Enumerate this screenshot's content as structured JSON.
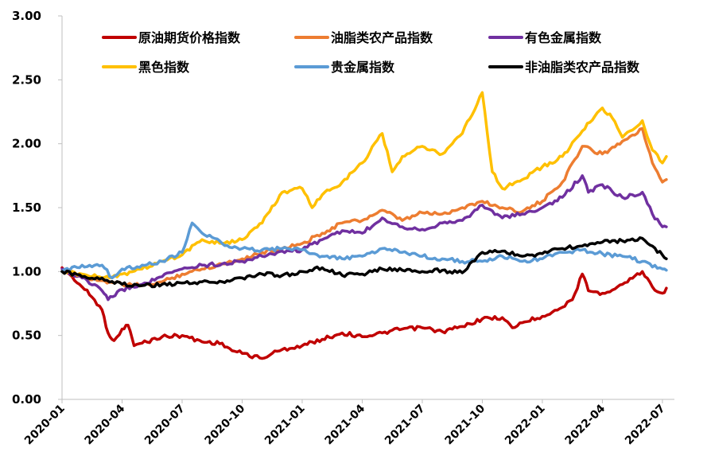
{
  "chart_data": {
    "type": "line",
    "title": "",
    "xlabel": "",
    "ylabel": "",
    "ylim": [
      0,
      3
    ],
    "y_ticks": [
      "0.00",
      "0.50",
      "1.00",
      "1.50",
      "2.00",
      "2.50",
      "3.00"
    ],
    "x_ticks": [
      "2020-01",
      "2020-04",
      "2020-07",
      "2020-10",
      "2021-01",
      "2021-04",
      "2021-07",
      "2021-10",
      "2022-01",
      "2022-04",
      "2022-07"
    ],
    "grid": false,
    "legend_position": "top",
    "series": [
      {
        "name": "原油期货价格指数",
        "color": "#C00000",
        "points": [
          [
            "2020-01",
            1.03
          ],
          [
            "2020-01.5",
            0.96
          ],
          [
            "2020-02",
            0.88
          ],
          [
            "2020-02.5",
            0.8
          ],
          [
            "2020-03",
            0.7
          ],
          [
            "2020-03.3",
            0.52
          ],
          [
            "2020-03.6",
            0.46
          ],
          [
            "2020-04",
            0.55
          ],
          [
            "2020-04.3",
            0.58
          ],
          [
            "2020-04.6",
            0.42
          ],
          [
            "2020-05",
            0.44
          ],
          [
            "2020-06",
            0.49
          ],
          [
            "2020-07",
            0.5
          ],
          [
            "2020-08",
            0.45
          ],
          [
            "2020-09",
            0.44
          ],
          [
            "2020-09.5",
            0.38
          ],
          [
            "2020-10",
            0.36
          ],
          [
            "2020-11",
            0.32
          ],
          [
            "2020-11.5",
            0.36
          ],
          [
            "2020-12",
            0.39
          ],
          [
            "2021-01",
            0.42
          ],
          [
            "2021-02",
            0.47
          ],
          [
            "2021-03",
            0.52
          ],
          [
            "2021-04",
            0.49
          ],
          [
            "2021-05",
            0.52
          ],
          [
            "2021-06",
            0.55
          ],
          [
            "2021-07",
            0.56
          ],
          [
            "2021-08",
            0.53
          ],
          [
            "2021-09",
            0.57
          ],
          [
            "2021-10",
            0.63
          ],
          [
            "2021-11",
            0.64
          ],
          [
            "2021-11.5",
            0.56
          ],
          [
            "2021-12",
            0.6
          ],
          [
            "2022-01",
            0.65
          ],
          [
            "2022-02",
            0.72
          ],
          [
            "2022-02.5",
            0.78
          ],
          [
            "2022-03",
            0.98
          ],
          [
            "2022-03.3",
            0.85
          ],
          [
            "2022-04",
            0.83
          ],
          [
            "2022-05",
            0.9
          ],
          [
            "2022-06",
            1.0
          ],
          [
            "2022-06.5",
            0.88
          ],
          [
            "2022-07",
            0.83
          ],
          [
            "2022-07.2",
            0.87
          ]
        ]
      },
      {
        "name": "油脂类农产品指数",
        "color": "#ED7D31",
        "points": [
          [
            "2020-01",
            1.0
          ],
          [
            "2020-02",
            0.96
          ],
          [
            "2020-03",
            0.93
          ],
          [
            "2020-04",
            0.9
          ],
          [
            "2020-05",
            0.89
          ],
          [
            "2020-06",
            0.92
          ],
          [
            "2020-07",
            0.98
          ],
          [
            "2020-08",
            1.02
          ],
          [
            "2020-09",
            1.06
          ],
          [
            "2020-10",
            1.1
          ],
          [
            "2020-11",
            1.15
          ],
          [
            "2020-12",
            1.18
          ],
          [
            "2021-01",
            1.22
          ],
          [
            "2021-02",
            1.3
          ],
          [
            "2021-03",
            1.38
          ],
          [
            "2021-04",
            1.4
          ],
          [
            "2021-05",
            1.48
          ],
          [
            "2021-06",
            1.4
          ],
          [
            "2021-07",
            1.46
          ],
          [
            "2021-08",
            1.45
          ],
          [
            "2021-09",
            1.5
          ],
          [
            "2021-10",
            1.55
          ],
          [
            "2021-11",
            1.5
          ],
          [
            "2021-12",
            1.47
          ],
          [
            "2022-01",
            1.55
          ],
          [
            "2022-02",
            1.7
          ],
          [
            "2022-03",
            1.98
          ],
          [
            "2022-04",
            1.92
          ],
          [
            "2022-05",
            2.02
          ],
          [
            "2022-06",
            2.12
          ],
          [
            "2022-06.5",
            1.85
          ],
          [
            "2022-07",
            1.7
          ],
          [
            "2022-07.2",
            1.72
          ]
        ]
      },
      {
        "name": "有色金属指数",
        "color": "#7030A0",
        "points": [
          [
            "2020-01",
            1.02
          ],
          [
            "2020-02",
            0.95
          ],
          [
            "2020-03",
            0.85
          ],
          [
            "2020-03.3",
            0.78
          ],
          [
            "2020-04",
            0.86
          ],
          [
            "2020-05",
            0.9
          ],
          [
            "2020-06",
            0.96
          ],
          [
            "2020-07",
            1.02
          ],
          [
            "2020-08",
            1.05
          ],
          [
            "2020-09",
            1.06
          ],
          [
            "2020-10",
            1.08
          ],
          [
            "2020-11",
            1.12
          ],
          [
            "2020-12",
            1.16
          ],
          [
            "2021-01",
            1.17
          ],
          [
            "2021-02",
            1.25
          ],
          [
            "2021-03",
            1.32
          ],
          [
            "2021-04",
            1.3
          ],
          [
            "2021-05",
            1.42
          ],
          [
            "2021-06",
            1.35
          ],
          [
            "2021-07",
            1.33
          ],
          [
            "2021-08",
            1.38
          ],
          [
            "2021-09",
            1.4
          ],
          [
            "2021-10",
            1.52
          ],
          [
            "2021-11",
            1.42
          ],
          [
            "2021-12",
            1.45
          ],
          [
            "2022-01",
            1.5
          ],
          [
            "2022-02",
            1.58
          ],
          [
            "2022-03",
            1.75
          ],
          [
            "2022-03.3",
            1.62
          ],
          [
            "2022-04",
            1.68
          ],
          [
            "2022-05",
            1.58
          ],
          [
            "2022-06",
            1.62
          ],
          [
            "2022-06.5",
            1.45
          ],
          [
            "2022-07",
            1.35
          ],
          [
            "2022-07.2",
            1.35
          ]
        ]
      },
      {
        "name": "黑色指数",
        "color": "#FFC000",
        "points": [
          [
            "2020-01",
            1.0
          ],
          [
            "2020-02",
            0.98
          ],
          [
            "2020-03",
            0.95
          ],
          [
            "2020-04",
            0.98
          ],
          [
            "2020-05",
            1.02
          ],
          [
            "2020-06",
            1.08
          ],
          [
            "2020-07",
            1.13
          ],
          [
            "2020-08",
            1.25
          ],
          [
            "2020-09",
            1.22
          ],
          [
            "2020-10",
            1.25
          ],
          [
            "2020-11",
            1.38
          ],
          [
            "2020-12",
            1.62
          ],
          [
            "2021-01",
            1.65
          ],
          [
            "2021-01.5",
            1.5
          ],
          [
            "2021-02",
            1.6
          ],
          [
            "2021-03",
            1.7
          ],
          [
            "2021-04",
            1.85
          ],
          [
            "2021-05",
            2.08
          ],
          [
            "2021-05.5",
            1.78
          ],
          [
            "2021-06",
            1.9
          ],
          [
            "2021-07",
            1.98
          ],
          [
            "2021-08",
            1.92
          ],
          [
            "2021-09",
            2.08
          ],
          [
            "2021-10",
            2.4
          ],
          [
            "2021-10.5",
            1.78
          ],
          [
            "2021-11",
            1.65
          ],
          [
            "2021-12",
            1.72
          ],
          [
            "2022-01",
            1.82
          ],
          [
            "2022-02",
            1.9
          ],
          [
            "2022-03",
            2.1
          ],
          [
            "2022-04",
            2.28
          ],
          [
            "2022-04.5",
            2.2
          ],
          [
            "2022-05",
            2.05
          ],
          [
            "2022-06",
            2.18
          ],
          [
            "2022-06.5",
            1.95
          ],
          [
            "2022-07",
            1.85
          ],
          [
            "2022-07.2",
            1.9
          ]
        ]
      },
      {
        "name": "贵金属指数",
        "color": "#5B9BD5",
        "points": [
          [
            "2020-01",
            1.0
          ],
          [
            "2020-02",
            1.05
          ],
          [
            "2020-03",
            1.05
          ],
          [
            "2020-03.5",
            0.95
          ],
          [
            "2020-04",
            1.02
          ],
          [
            "2020-05",
            1.05
          ],
          [
            "2020-06",
            1.08
          ],
          [
            "2020-07",
            1.15
          ],
          [
            "2020-07.5",
            1.38
          ],
          [
            "2020-08",
            1.3
          ],
          [
            "2020-09",
            1.22
          ],
          [
            "2020-10",
            1.18
          ],
          [
            "2020-11",
            1.17
          ],
          [
            "2020-12",
            1.18
          ],
          [
            "2021-01",
            1.17
          ],
          [
            "2021-02",
            1.12
          ],
          [
            "2021-03",
            1.1
          ],
          [
            "2021-04",
            1.12
          ],
          [
            "2021-05",
            1.18
          ],
          [
            "2021-06",
            1.15
          ],
          [
            "2021-07",
            1.12
          ],
          [
            "2021-08",
            1.1
          ],
          [
            "2021-09",
            1.08
          ],
          [
            "2021-10",
            1.08
          ],
          [
            "2021-11",
            1.12
          ],
          [
            "2021-12",
            1.08
          ],
          [
            "2022-01",
            1.1
          ],
          [
            "2022-02",
            1.15
          ],
          [
            "2022-03",
            1.17
          ],
          [
            "2022-04",
            1.14
          ],
          [
            "2022-05",
            1.12
          ],
          [
            "2022-06",
            1.08
          ],
          [
            "2022-07",
            1.02
          ],
          [
            "2022-07.2",
            1.01
          ]
        ]
      },
      {
        "name": "非油脂类农产品指数",
        "color": "#000000",
        "points": [
          [
            "2020-01",
            1.0
          ],
          [
            "2020-02",
            0.96
          ],
          [
            "2020-03",
            0.95
          ],
          [
            "2020-04",
            0.9
          ],
          [
            "2020-05",
            0.89
          ],
          [
            "2020-06",
            0.9
          ],
          [
            "2020-07",
            0.91
          ],
          [
            "2020-08",
            0.92
          ],
          [
            "2020-09",
            0.92
          ],
          [
            "2020-10",
            0.95
          ],
          [
            "2020-11",
            0.98
          ],
          [
            "2020-12",
            0.97
          ],
          [
            "2021-01",
            1.0
          ],
          [
            "2021-02",
            1.03
          ],
          [
            "2021-03",
            0.97
          ],
          [
            "2021-04",
            0.98
          ],
          [
            "2021-05",
            1.02
          ],
          [
            "2021-06",
            1.01
          ],
          [
            "2021-07",
            1.0
          ],
          [
            "2021-08",
            1.01
          ],
          [
            "2021-09",
            0.99
          ],
          [
            "2021-10",
            1.15
          ],
          [
            "2021-11",
            1.16
          ],
          [
            "2021-12",
            1.12
          ],
          [
            "2022-01",
            1.14
          ],
          [
            "2022-02",
            1.18
          ],
          [
            "2022-03",
            1.2
          ],
          [
            "2022-04",
            1.23
          ],
          [
            "2022-05",
            1.24
          ],
          [
            "2022-06",
            1.26
          ],
          [
            "2022-06.5",
            1.2
          ],
          [
            "2022-07",
            1.13
          ],
          [
            "2022-07.2",
            1.1
          ]
        ]
      }
    ]
  }
}
